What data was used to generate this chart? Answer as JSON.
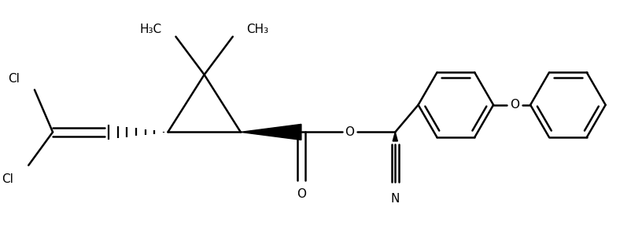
{
  "bg_color": "#ffffff",
  "line_color": "#000000",
  "line_width": 1.8,
  "font_size": 11,
  "fig_width": 7.88,
  "fig_height": 3.06,
  "xlim": [
    0,
    10
  ],
  "ylim": [
    0,
    3.9
  ]
}
